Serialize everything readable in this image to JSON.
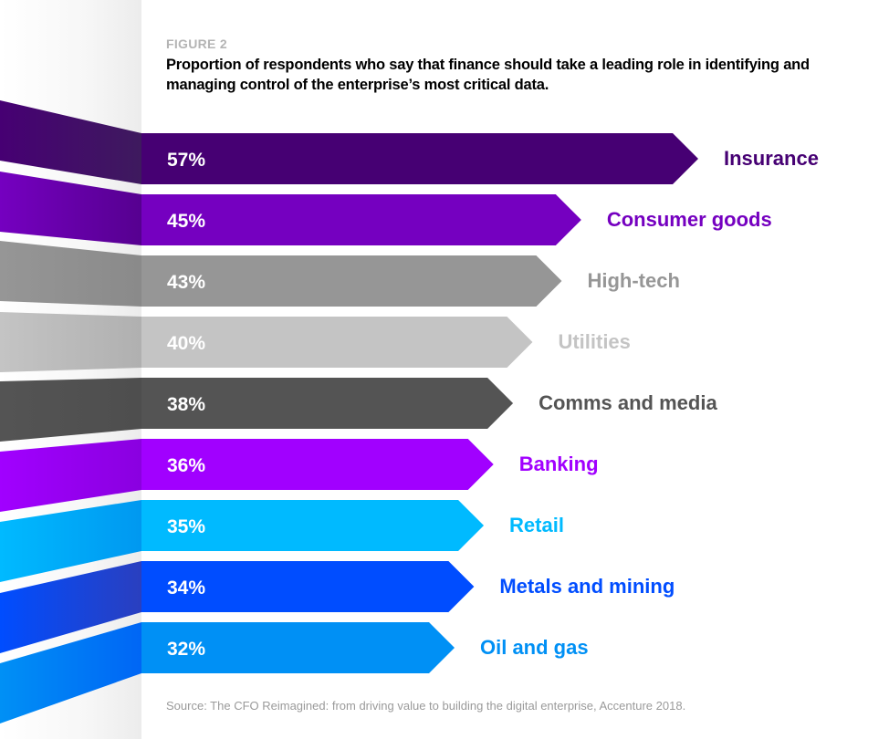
{
  "figure_label": "FIGURE 2",
  "title": "Proportion of respondents who say that finance should take a leading role in identifying and managing control of the enterprise’s most critical data.",
  "source": "Source: The CFO Reimagined: from driving value to building the digital enterprise, Accenture 2018.",
  "chart_data": {
    "type": "bar",
    "orientation": "horizontal",
    "title": "Proportion of respondents who say that finance should take a leading role in identifying and managing control of the enterprise’s most critical data.",
    "xlabel": "",
    "ylabel": "",
    "unit": "%",
    "grid": false,
    "categories": [
      "Insurance",
      "Consumer goods",
      "High-tech",
      "Utilities",
      "Comms and media",
      "Banking",
      "Retail",
      "Metals and mining",
      "Oil and gas"
    ],
    "values": [
      57,
      45,
      43,
      40,
      38,
      36,
      35,
      34,
      32
    ],
    "value_labels": [
      "57%",
      "45%",
      "43%",
      "40%",
      "38%",
      "36%",
      "35%",
      "34%",
      "32%"
    ],
    "colors": [
      "#460073",
      "#7500c0",
      "#969696",
      "#c4c4c4",
      "#545454",
      "#a100ff",
      "#00baff",
      "#004dff",
      "#0090f5"
    ],
    "fold_colors": [
      "#3e1a5e",
      "#560090",
      "#8a8a8a",
      "#b0b0b0",
      "#4e4e4e",
      "#8a00e0",
      "#0098f0",
      "#2a3fbf",
      "#0066f5"
    ]
  }
}
